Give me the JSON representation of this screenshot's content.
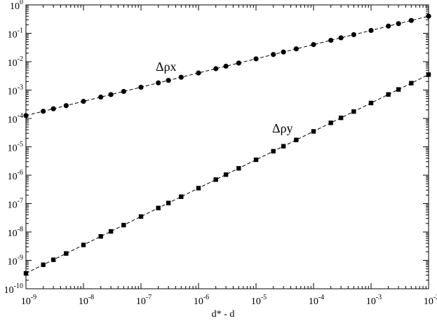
{
  "chart_data": {
    "type": "line",
    "xlabel": "d* - d",
    "xscale": "log",
    "yscale": "log",
    "x": [
      1e-09,
      2e-09,
      3e-09,
      5e-09,
      1e-08,
      2e-08,
      3e-08,
      5e-08,
      1e-07,
      2e-07,
      3e-07,
      5e-07,
      1e-06,
      2e-06,
      3e-06,
      5e-06,
      1e-05,
      2e-05,
      3e-05,
      5e-05,
      0.0001,
      0.0002,
      0.0003,
      0.0005,
      0.001,
      0.002,
      0.003,
      0.005,
      0.01
    ],
    "series": [
      {
        "name": "Δρx",
        "color": "#000000",
        "marker": "circle",
        "values": [
          0.000126,
          0.000179,
          0.000219,
          0.000283,
          0.0004,
          0.000566,
          0.000693,
          0.000894,
          0.00126,
          0.00179,
          0.00219,
          0.00283,
          0.004,
          0.00566,
          0.00693,
          0.00894,
          0.0126,
          0.0179,
          0.0219,
          0.0283,
          0.04,
          0.0566,
          0.0693,
          0.0894,
          0.126,
          0.179,
          0.219,
          0.283,
          0.4
        ]
      },
      {
        "name": "Δρy",
        "color": "#000000",
        "marker": "square",
        "values": [
          3.5e-10,
          7e-10,
          1.05e-09,
          1.75e-09,
          3.5e-09,
          7e-09,
          1.05e-08,
          1.75e-08,
          3.5e-08,
          7e-08,
          1.05e-07,
          1.75e-07,
          3.5e-07,
          7e-07,
          1.05e-06,
          1.75e-06,
          3.5e-06,
          7e-06,
          1.05e-05,
          1.75e-05,
          3.5e-05,
          7e-05,
          0.000105,
          0.000175,
          0.00035,
          0.0007,
          0.00105,
          0.00175,
          0.0035
        ]
      }
    ],
    "xlim": [
      1e-09,
      0.01
    ],
    "ylim": [
      1e-10,
      1
    ],
    "xticks": [
      {
        "value": 1e-09,
        "label": "10",
        "exp": "-9"
      },
      {
        "value": 1e-08,
        "label": "10",
        "exp": "-8"
      },
      {
        "value": 1e-07,
        "label": "10",
        "exp": "-7"
      },
      {
        "value": 1e-06,
        "label": "10",
        "exp": "-6"
      },
      {
        "value": 1e-05,
        "label": "10",
        "exp": "-5"
      },
      {
        "value": 0.0001,
        "label": "10",
        "exp": "-4"
      },
      {
        "value": 0.001,
        "label": "10",
        "exp": "-3"
      },
      {
        "value": 0.01,
        "label": "10",
        "exp": "-2"
      }
    ],
    "yticks": [
      {
        "value": 1e-10,
        "label": "10",
        "exp": "-10"
      },
      {
        "value": 1e-09,
        "label": "10",
        "exp": "-9"
      },
      {
        "value": 1e-08,
        "label": "10",
        "exp": "-8"
      },
      {
        "value": 1e-07,
        "label": "10",
        "exp": "-7"
      },
      {
        "value": 1e-06,
        "label": "10",
        "exp": "-6"
      },
      {
        "value": 1e-05,
        "label": "10",
        "exp": "-5"
      },
      {
        "value": 0.0001,
        "label": "10",
        "exp": "-4"
      },
      {
        "value": 0.001,
        "label": "10",
        "exp": "-3"
      },
      {
        "value": 0.01,
        "label": "10",
        "exp": "-2"
      },
      {
        "value": 0.1,
        "label": "10",
        "exp": "-1"
      },
      {
        "value": 1,
        "label": "10",
        "exp": "0"
      }
    ],
    "grid": false
  }
}
